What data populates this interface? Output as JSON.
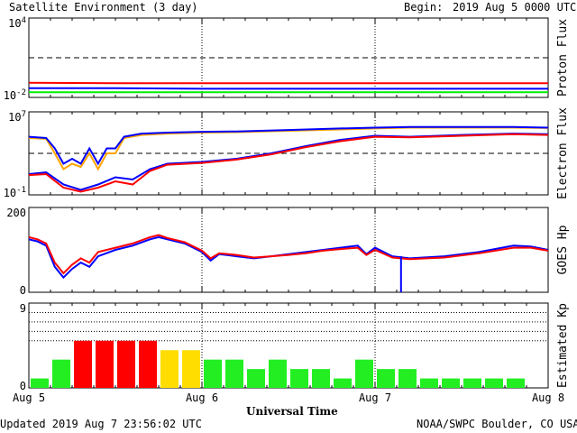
{
  "header": {
    "title": "Satellite Environment (3 day)",
    "begin_label": "Begin:",
    "begin_value": "2019 Aug 5 0000 UTC"
  },
  "footer": {
    "updated": "Updated 2019 Aug  7 23:56:02 UTC",
    "credit": "NOAA/SWPC Boulder, CO USA"
  },
  "x_axis": {
    "label": "Universal Time",
    "ticks": [
      "Aug 5",
      "Aug 6",
      "Aug 7",
      "Aug 8"
    ]
  },
  "colors": {
    "red": "#ff0000",
    "blue": "#0000ff",
    "green": "#00ee00",
    "orange": "#ffa500",
    "kp_green": "#22ee22",
    "kp_yellow": "#ffdd00",
    "kp_red": "#ff0000"
  },
  "chart_data": [
    {
      "type": "line",
      "ylabel": "Proton Flux",
      "scale": "log",
      "y_tick_labels": [
        "10^4",
        "10^-2"
      ],
      "ylim": [
        0.01,
        10000
      ],
      "threshold": 10,
      "series": [
        {
          "color": "red",
          "x": [
            0,
            0.5,
            1,
            1.5,
            2,
            2.5,
            3
          ],
          "y": [
            0.13,
            0.12,
            0.12,
            0.12,
            0.12,
            0.12,
            0.12
          ]
        },
        {
          "color": "blue",
          "x": [
            0,
            0.5,
            1,
            1.5,
            2,
            2.5,
            3
          ],
          "y": [
            0.05,
            0.05,
            0.045,
            0.045,
            0.045,
            0.045,
            0.045
          ]
        },
        {
          "color": "green",
          "x": [
            0,
            0.5,
            1,
            1.5,
            2,
            2.5,
            3
          ],
          "y": [
            0.025,
            0.025,
            0.025,
            0.025,
            0.025,
            0.025,
            0.025
          ]
        }
      ]
    },
    {
      "type": "line",
      "ylabel": "Electron Flux",
      "scale": "log",
      "y_tick_labels": [
        "10^7",
        "10^-1"
      ],
      "ylim": [
        0.1,
        10000000
      ],
      "threshold": 1000,
      "series": [
        {
          "color": "orange",
          "x": [
            0,
            0.1,
            0.15,
            0.2,
            0.25,
            0.3,
            0.35,
            0.4,
            0.45,
            0.5,
            0.55,
            0.65,
            0.8,
            1.0,
            1.2,
            1.5,
            1.8,
            2.0,
            2.2,
            2.5,
            2.8,
            3.0
          ],
          "y": [
            30000,
            25000,
            1000,
            30,
            100,
            50,
            1000,
            30,
            1000,
            1000,
            30000,
            60000,
            80000,
            100000,
            110000,
            150000,
            200000,
            250000,
            300000,
            300000,
            300000,
            280000
          ]
        },
        {
          "color": "blue",
          "x": [
            0,
            0.1,
            0.15,
            0.2,
            0.25,
            0.3,
            0.35,
            0.4,
            0.45,
            0.5,
            0.55,
            0.65,
            0.8,
            1.0,
            1.2,
            1.5,
            1.8,
            2.0,
            2.2,
            2.5,
            2.8,
            3.0
          ],
          "y": [
            40000,
            30000,
            3000,
            100,
            300,
            100,
            3000,
            100,
            3000,
            3000,
            40000,
            80000,
            100000,
            120000,
            130000,
            180000,
            250000,
            300000,
            350000,
            350000,
            350000,
            300000
          ]
        },
        {
          "color": "blue",
          "x": [
            0,
            0.1,
            0.2,
            0.3,
            0.4,
            0.5,
            0.6,
            0.7,
            0.8,
            1.0,
            1.2,
            1.4,
            1.6,
            1.8,
            2.0,
            2.2,
            2.5,
            2.8,
            3.0
          ],
          "y": [
            10,
            15,
            1,
            0.3,
            1,
            5,
            3,
            30,
            100,
            150,
            300,
            1000,
            5000,
            20000,
            50000,
            40000,
            60000,
            80000,
            70000
          ]
        },
        {
          "color": "red",
          "x": [
            0,
            0.1,
            0.2,
            0.3,
            0.4,
            0.5,
            0.6,
            0.7,
            0.8,
            1.0,
            1.2,
            1.4,
            1.6,
            1.8,
            2.0,
            2.2,
            2.5,
            2.8,
            3.0
          ],
          "y": [
            8,
            10,
            0.5,
            0.2,
            0.5,
            2,
            1,
            20,
            80,
            120,
            250,
            800,
            4000,
            15000,
            40000,
            35000,
            50000,
            70000,
            60000
          ]
        }
      ]
    },
    {
      "type": "line",
      "ylabel": "GOES Hp",
      "scale": "linear",
      "y_tick_labels": [
        "200",
        "0"
      ],
      "ylim": [
        0,
        200
      ],
      "series": [
        {
          "color": "blue",
          "x": [
            0,
            0.05,
            0.1,
            0.15,
            0.2,
            0.25,
            0.3,
            0.35,
            0.4,
            0.5,
            0.6,
            0.7,
            0.75,
            0.8,
            0.9,
            1.0,
            1.05,
            1.1,
            1.2,
            1.3,
            1.4,
            1.5,
            1.6,
            1.7,
            1.8,
            1.9,
            1.95,
            2.0,
            2.1,
            2.2,
            2.4,
            2.6,
            2.8,
            2.9,
            3.0
          ],
          "y": [
            125,
            120,
            110,
            60,
            35,
            55,
            70,
            60,
            85,
            100,
            110,
            125,
            130,
            125,
            115,
            95,
            75,
            90,
            85,
            80,
            85,
            90,
            95,
            100,
            105,
            110,
            90,
            105,
            85,
            80,
            85,
            95,
            110,
            108,
            100
          ]
        },
        {
          "color": "red",
          "x": [
            0,
            0.05,
            0.1,
            0.15,
            0.2,
            0.25,
            0.3,
            0.35,
            0.4,
            0.5,
            0.6,
            0.7,
            0.75,
            0.8,
            0.9,
            1.0,
            1.05,
            1.1,
            1.2,
            1.3,
            1.4,
            1.5,
            1.6,
            1.7,
            1.8,
            1.9,
            1.95,
            2.0,
            2.1,
            2.2,
            2.4,
            2.6,
            2.8,
            2.9,
            3.0
          ],
          "y": [
            130,
            125,
            115,
            70,
            45,
            65,
            80,
            70,
            95,
            105,
            115,
            130,
            135,
            128,
            118,
            98,
            80,
            92,
            88,
            82,
            85,
            88,
            92,
            98,
            102,
            105,
            88,
            100,
            82,
            78,
            82,
            92,
            105,
            105,
            98
          ]
        }
      ],
      "dropout": {
        "color": "blue",
        "x": 2.15,
        "y": [
          0,
          85
        ]
      }
    },
    {
      "type": "bar",
      "ylabel": "Estimated Kp",
      "y_tick_labels": [
        "9",
        "0"
      ],
      "ylim": [
        0,
        9
      ],
      "gridlines": [
        5,
        6,
        7,
        8
      ],
      "bar_x": [
        0.0625,
        0.1875,
        0.3125,
        0.4375,
        0.5625,
        0.6875,
        0.8125,
        0.9375,
        1.0625,
        1.1875,
        1.3125,
        1.4375,
        1.5625,
        1.6875,
        1.8125,
        1.9375,
        2.0625,
        2.1875,
        2.3125,
        2.4375,
        2.5625,
        2.6875,
        2.8125
      ],
      "values": [
        1,
        3,
        5,
        5,
        5,
        5,
        4,
        4,
        3,
        3,
        2,
        3,
        2,
        2,
        1,
        3,
        2,
        2,
        1,
        1,
        1,
        1,
        1
      ],
      "bar_colors": [
        "kp_green",
        "kp_green",
        "kp_red",
        "kp_red",
        "kp_red",
        "kp_red",
        "kp_yellow",
        "kp_yellow",
        "kp_green",
        "kp_green",
        "kp_green",
        "kp_green",
        "kp_green",
        "kp_green",
        "kp_green",
        "kp_green",
        "kp_green",
        "kp_green",
        "kp_green",
        "kp_green",
        "kp_green",
        "kp_green",
        "kp_green"
      ]
    }
  ]
}
